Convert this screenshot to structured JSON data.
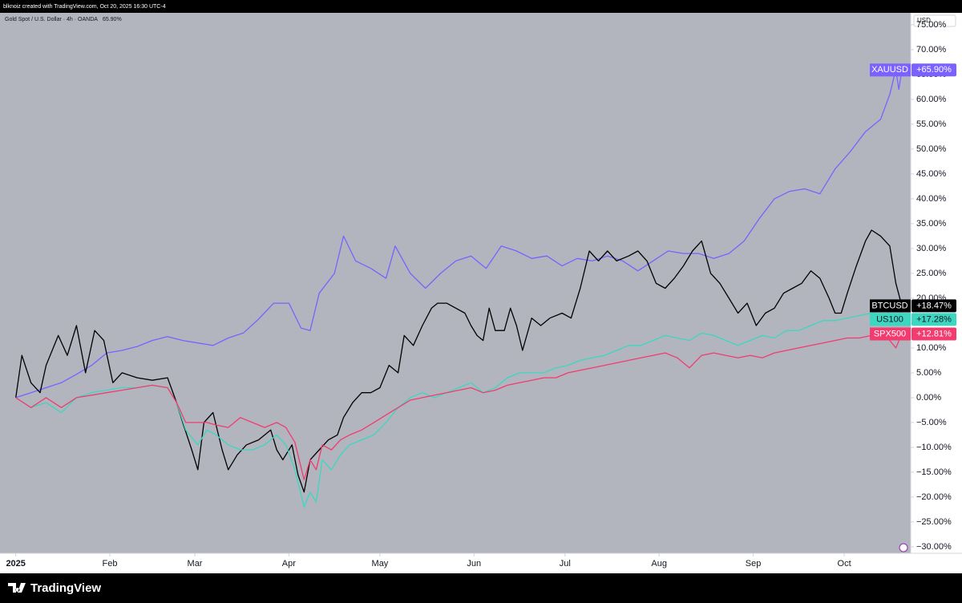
{
  "header": {
    "attribution": "blknoiz created with TradingView.com, Oct 20, 2025 16:30 UTC-4"
  },
  "footer": {
    "brand": "TradingView"
  },
  "chart_data": {
    "type": "line",
    "legend": "Gold Spot / U.S. Dollar · 4h · OANDA",
    "legend_value": "65.90%",
    "axis_unit": "USD",
    "grid": false,
    "xlim": [
      -5.2,
      294.9
    ],
    "xticks": [
      {
        "value": 0,
        "label": "2025"
      },
      {
        "value": 31,
        "label": "Feb"
      },
      {
        "value": 59,
        "label": "Mar"
      },
      {
        "value": 90,
        "label": "Apr"
      },
      {
        "value": 120,
        "label": "May"
      },
      {
        "value": 151,
        "label": "Jun"
      },
      {
        "value": 181,
        "label": "Jul"
      },
      {
        "value": 212,
        "label": "Aug"
      },
      {
        "value": 243,
        "label": "Sep"
      },
      {
        "value": 273,
        "label": "Oct"
      }
    ],
    "ylim": [
      -31.3,
      77.4
    ],
    "yticks": [
      {
        "value": 75,
        "label": "75.00%"
      },
      {
        "value": 70,
        "label": "70.00%"
      },
      {
        "value": 65,
        "label": "65.00%"
      },
      {
        "value": 60,
        "label": "60.00%"
      },
      {
        "value": 55,
        "label": "55.00%"
      },
      {
        "value": 50,
        "label": "50.00%"
      },
      {
        "value": 45,
        "label": "45.00%"
      },
      {
        "value": 40,
        "label": "40.00%"
      },
      {
        "value": 35,
        "label": "35.00%"
      },
      {
        "value": 30,
        "label": "30.00%"
      },
      {
        "value": 25,
        "label": "25.00%"
      },
      {
        "value": 20,
        "label": "20.00%"
      },
      {
        "value": 15,
        "label": "15.00%"
      },
      {
        "value": 10,
        "label": "10.00%"
      },
      {
        "value": 5,
        "label": "5.00%"
      },
      {
        "value": 0,
        "label": "0.00%"
      },
      {
        "value": -5,
        "label": "−5.00%"
      },
      {
        "value": -10,
        "label": "−10.00%"
      },
      {
        "value": -15,
        "label": "−15.00%"
      },
      {
        "value": -20,
        "label": "−20.00%"
      },
      {
        "value": -25,
        "label": "−25.00%"
      },
      {
        "value": -30,
        "label": "−30.00%"
      }
    ],
    "series": [
      {
        "name": "XAUUSD",
        "color": "#7b61ff",
        "tag_text": "#ffffff",
        "last_label": "+65.90%",
        "x": [
          0,
          5,
          10,
          15,
          20,
          25,
          30,
          35,
          40,
          45,
          50,
          55,
          60,
          65,
          70,
          75,
          80,
          85,
          90,
          94,
          97,
          100,
          105,
          108,
          112,
          117,
          122,
          125,
          130,
          135,
          140,
          145,
          150,
          155,
          160,
          165,
          170,
          175,
          180,
          185,
          190,
          195,
          200,
          205,
          210,
          215,
          220,
          225,
          230,
          235,
          240,
          245,
          250,
          255,
          260,
          265,
          270,
          275,
          280,
          285,
          288,
          290,
          291,
          292
        ],
        "values": [
          0,
          1,
          2,
          3,
          4.7,
          6.5,
          9,
          9.5,
          10.3,
          11.5,
          12.3,
          11.5,
          11,
          10.5,
          12,
          13,
          15.8,
          19,
          19,
          14,
          13.5,
          21,
          25,
          32.5,
          27.5,
          26,
          24,
          30.5,
          25,
          22,
          25,
          27.5,
          28.5,
          26,
          30.5,
          29.5,
          28,
          28.5,
          26.5,
          28,
          27.5,
          28.5,
          27.5,
          25.5,
          27.5,
          29.5,
          29,
          29,
          28,
          29,
          31.5,
          36,
          40,
          41.5,
          42,
          41,
          46,
          49.5,
          53.5,
          56,
          61,
          66,
          62,
          65.9
        ]
      },
      {
        "name": "BTCUSD",
        "color": "#000000",
        "tag_text": "#ffffff",
        "last_label": "+18.47%",
        "x": [
          0,
          2,
          5,
          8,
          10,
          14,
          17,
          20,
          23,
          26,
          29,
          32,
          35,
          40,
          45,
          50,
          53,
          55,
          58,
          60,
          62,
          65,
          68,
          70,
          73,
          76,
          80,
          84,
          86,
          88,
          91,
          93,
          95,
          97,
          100,
          103,
          106,
          108,
          111,
          114,
          117,
          120,
          123,
          126,
          128,
          131,
          134,
          137,
          139,
          142,
          145,
          148,
          150,
          152,
          154,
          156,
          158,
          161,
          163,
          165,
          167,
          170,
          173,
          176,
          180,
          183,
          186,
          189,
          192,
          195,
          198,
          202,
          205,
          208,
          211,
          214,
          217,
          220,
          223,
          226,
          229,
          232,
          235,
          238,
          241,
          244,
          247,
          250,
          253,
          256,
          259,
          262,
          265,
          268,
          270,
          272,
          274,
          277,
          280,
          282,
          285,
          288,
          290,
          292
        ],
        "values": [
          0,
          8.5,
          3,
          1,
          6.5,
          12.5,
          8.5,
          14.5,
          5,
          13.5,
          11.5,
          3,
          5,
          4,
          3.5,
          4,
          -1,
          -5,
          -10.5,
          -14.5,
          -5,
          -3,
          -10.5,
          -14.5,
          -11.5,
          -9.5,
          -8.5,
          -6.5,
          -10.5,
          -12.5,
          -9.5,
          -15.5,
          -19,
          -12.5,
          -10.5,
          -8.5,
          -7.5,
          -4,
          -1,
          1,
          1,
          2,
          6.5,
          5,
          12.5,
          10.5,
          14.5,
          18,
          19,
          19,
          18,
          17,
          14.5,
          12.5,
          11.5,
          18,
          13.5,
          13.5,
          18,
          14.5,
          9.5,
          16,
          14.5,
          16,
          17,
          16,
          22,
          29.5,
          27.5,
          29.5,
          27.5,
          28.5,
          29.5,
          27.5,
          23,
          22,
          24,
          26.5,
          29.5,
          31.5,
          25,
          23,
          20,
          17,
          19,
          14.5,
          17,
          18,
          21,
          22,
          23,
          25.5,
          24,
          20,
          17,
          17,
          21,
          26.5,
          31.5,
          33.7,
          32.5,
          30.5,
          23,
          18.47
        ]
      },
      {
        "name": "US100",
        "color": "#3dd6c0",
        "tag_text": "#131722",
        "last_label": "+17.28%",
        "x": [
          0,
          5,
          10,
          15,
          20,
          25,
          30,
          35,
          40,
          45,
          50,
          53,
          56,
          60,
          63,
          66,
          70,
          74,
          78,
          82,
          86,
          89,
          92,
          95,
          97,
          99,
          101,
          104,
          107,
          110,
          114,
          118,
          122,
          126,
          130,
          134,
          138,
          142,
          146,
          150,
          154,
          158,
          162,
          166,
          170,
          174,
          178,
          182,
          186,
          190,
          194,
          198,
          202,
          206,
          210,
          214,
          218,
          222,
          226,
          230,
          234,
          238,
          242,
          246,
          250,
          254,
          258,
          262,
          266,
          270,
          274,
          278,
          282,
          286,
          290,
          292
        ],
        "values": [
          0,
          -2,
          -1,
          -3,
          0,
          1,
          1.5,
          2,
          2,
          2.5,
          2,
          -1,
          -6.5,
          -9.5,
          -6.5,
          -7.5,
          -9.5,
          -10.5,
          -10.5,
          -9.5,
          -7.5,
          -9.5,
          -14.5,
          -22,
          -19,
          -21,
          -12.5,
          -14.5,
          -11.5,
          -9.5,
          -8.5,
          -7.5,
          -5,
          -2,
          0,
          1,
          0,
          1,
          2,
          3,
          1,
          2,
          4,
          5,
          5,
          5,
          6,
          6.5,
          7.5,
          8,
          8.5,
          9.5,
          10.5,
          10.5,
          11.5,
          12.5,
          12,
          11.5,
          13,
          12.5,
          11.5,
          10.5,
          11.5,
          12.5,
          12,
          13.5,
          13.5,
          14.5,
          15.5,
          15.5,
          16,
          16.5,
          17,
          17.5,
          16.5,
          17.28
        ]
      },
      {
        "name": "SPX500",
        "color": "#f23b6f",
        "tag_text": "#ffffff",
        "last_label": "+12.81%",
        "x": [
          0,
          5,
          10,
          15,
          20,
          25,
          30,
          35,
          40,
          45,
          50,
          53,
          56,
          60,
          63,
          66,
          70,
          74,
          78,
          82,
          86,
          89,
          92,
          95,
          97,
          99,
          101,
          104,
          107,
          110,
          114,
          118,
          122,
          126,
          130,
          134,
          138,
          142,
          146,
          150,
          154,
          158,
          162,
          166,
          170,
          174,
          178,
          182,
          186,
          190,
          194,
          198,
          202,
          206,
          210,
          214,
          218,
          222,
          226,
          230,
          234,
          238,
          242,
          246,
          250,
          254,
          258,
          262,
          266,
          270,
          274,
          278,
          282,
          286,
          290,
          292
        ],
        "values": [
          0,
          -2,
          0,
          -2,
          0,
          0.5,
          1,
          1.5,
          2,
          2.5,
          2,
          -1,
          -5,
          -5,
          -5,
          -5.5,
          -6,
          -4,
          -5,
          -6,
          -5,
          -6,
          -9,
          -16.5,
          -12.5,
          -14.5,
          -9.5,
          -10.5,
          -8.5,
          -7.5,
          -6.5,
          -5,
          -3.5,
          -2,
          -0.5,
          0,
          0.5,
          1,
          1.5,
          2,
          1,
          1.5,
          2.5,
          3,
          3.5,
          4,
          4,
          5,
          5.5,
          6,
          6.5,
          7,
          7.5,
          8,
          8.5,
          9,
          8,
          6,
          8.5,
          9,
          8.5,
          8,
          8.5,
          8,
          9,
          9.5,
          10,
          10.5,
          11,
          11.5,
          12,
          12,
          12.5,
          13,
          10,
          12.81
        ]
      }
    ]
  }
}
